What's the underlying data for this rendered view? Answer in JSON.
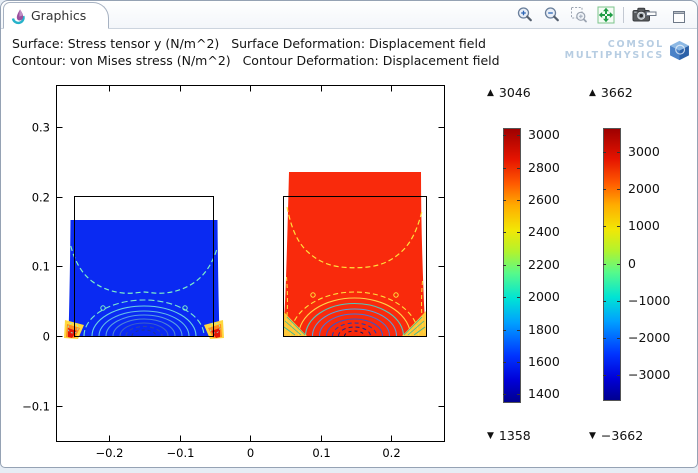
{
  "window": {
    "tab_label": "Graphics"
  },
  "header": {
    "line1": "Surface: Stress tensor y (N/m^2)   Surface Deformation: Displacement field",
    "line2": "Contour: von Mises stress (N/m^2)   Contour Deformation: Displacement field"
  },
  "logo": {
    "line1": "COMSOL",
    "line2": "MULTIPHYSICS"
  },
  "symbols": {
    "up": "▲",
    "down": "▼"
  },
  "chart_data": {
    "type": "heatmap",
    "title": "Surface: Stress tensor y (N/m^2)",
    "subtitle": "Contour: von Mises stress (N/m^2), deformed by displacement field",
    "grid": false,
    "xlim": [
      -0.275,
      0.278
    ],
    "ylim": [
      -0.153,
      0.358
    ],
    "x_ticks": {
      "values": [
        -0.2,
        -0.1,
        0,
        0.1,
        0.2
      ],
      "labels": [
        "−0.2",
        "−0.1",
        "0",
        "0.1",
        "0.2"
      ]
    },
    "y_ticks": {
      "values": [
        0.3,
        0.2,
        0.1,
        0,
        -0.1
      ],
      "labels": [
        "0.3",
        "0.2",
        "0.1",
        "0",
        "−0.1"
      ]
    },
    "models": [
      {
        "name": "left block",
        "outline_x": [
          -0.25,
          -0.05
        ],
        "outline_y": [
          0,
          0.2
        ],
        "deformed_top": 0.165,
        "surface_color": "blue (low stress tensor y ≈ 1400 N/m^2)"
      },
      {
        "name": "right block",
        "outline_x": [
          0.05,
          0.25
        ],
        "outline_y": [
          0,
          0.2
        ],
        "deformed_top": 0.235,
        "surface_color": "red (high stress tensor y ≈ +3000 N/m^2)"
      }
    ],
    "colorbars": [
      {
        "max": 3046,
        "min": 1358,
        "max_label": "3046",
        "min_label": "1358",
        "tick_values": [
          3000,
          2800,
          2600,
          2400,
          2200,
          2000,
          1800,
          1600,
          1400
        ],
        "tick_labels": [
          "3000",
          "2800",
          "2600",
          "2400",
          "2200",
          "2000",
          "1800",
          "1600",
          "1400"
        ]
      },
      {
        "max": 3662,
        "min": -3662,
        "max_label": "3662",
        "min_label": "−3662",
        "tick_values": [
          3000,
          2000,
          1000,
          0,
          -1000,
          -2000,
          -3000
        ],
        "tick_labels": [
          "3000",
          "2000",
          "1000",
          "0",
          "−1000",
          "−2000",
          "−3000"
        ]
      }
    ]
  }
}
